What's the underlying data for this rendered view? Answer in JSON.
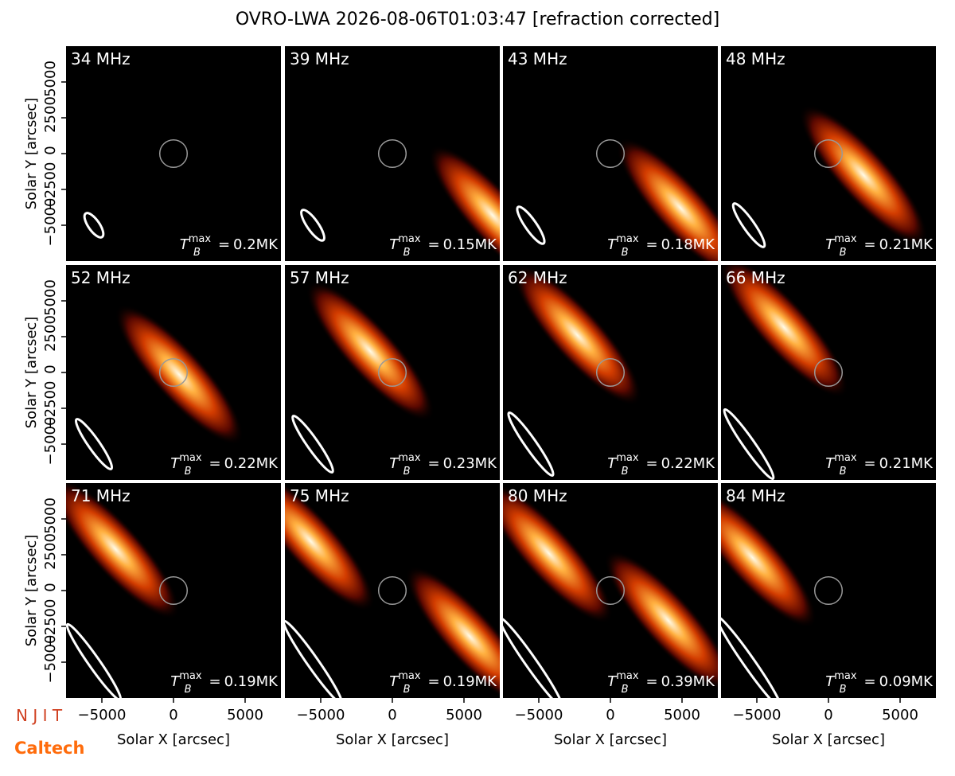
{
  "chart_data": {
    "type": "image-grid",
    "title": "OVRO-LWA 2026-08-06T01:03:47 [refraction corrected]",
    "x_label": "Solar X [arcsec]",
    "y_label": "Solar Y [arcsec]",
    "xlim": [
      -7500,
      7500
    ],
    "ylim": [
      -7500,
      7500
    ],
    "xticks": [
      {
        "value": -5000,
        "label": "−5000"
      },
      0,
      5000
    ],
    "yticks": [
      {
        "value": -5000,
        "label": "−5000"
      },
      {
        "value": -2500,
        "label": "−2500"
      },
      0,
      2500,
      5000
    ],
    "sun_radius": 960,
    "tmax_symbol": {
      "base": "T",
      "sub": "B",
      "sup": "max",
      "eq": "="
    },
    "panels": [
      {
        "freq": "34 MHz",
        "tmax": "0.2MK",
        "sources": []
      },
      {
        "freq": "39 MHz",
        "tmax": "0.15MK",
        "sources": [
          {
            "x": 7000,
            "y": -4300
          }
        ]
      },
      {
        "freq": "43 MHz",
        "tmax": "0.18MK",
        "sources": [
          {
            "x": 4900,
            "y": -3800
          }
        ]
      },
      {
        "freq": "48 MHz",
        "tmax": "0.21MK",
        "sources": [
          {
            "x": 2450,
            "y": -1500
          }
        ]
      },
      {
        "freq": "52 MHz",
        "tmax": "0.22MK",
        "sources": [
          {
            "x": 400,
            "y": -150
          }
        ]
      },
      {
        "freq": "57 MHz",
        "tmax": "0.23MK",
        "sources": [
          {
            "x": -1550,
            "y": 1500
          }
        ]
      },
      {
        "freq": "62 MHz",
        "tmax": "0.22MK",
        "sources": [
          {
            "x": -2300,
            "y": 2600
          }
        ]
      },
      {
        "freq": "66 MHz",
        "tmax": "0.21MK",
        "sources": [
          {
            "x": -3100,
            "y": 3150
          }
        ]
      },
      {
        "freq": "71 MHz",
        "tmax": "0.19MK",
        "sources": [
          {
            "x": -4050,
            "y": 2900
          }
        ]
      },
      {
        "freq": "75 MHz",
        "tmax": "0.19MK",
        "sources": [
          {
            "x": -5700,
            "y": 3450
          },
          {
            "x": 5400,
            "y": -3200
          }
        ]
      },
      {
        "freq": "80 MHz",
        "tmax": "0.39MK",
        "sources": [
          {
            "x": 4050,
            "y": -2100
          },
          {
            "x": -4300,
            "y": 2600
          }
        ]
      },
      {
        "freq": "84 MHz",
        "tmax": "0.09MK",
        "sources": [
          {
            "x": -5300,
            "y": 2300
          }
        ]
      }
    ],
    "logos": [
      "N J I T",
      "Caltech"
    ]
  }
}
